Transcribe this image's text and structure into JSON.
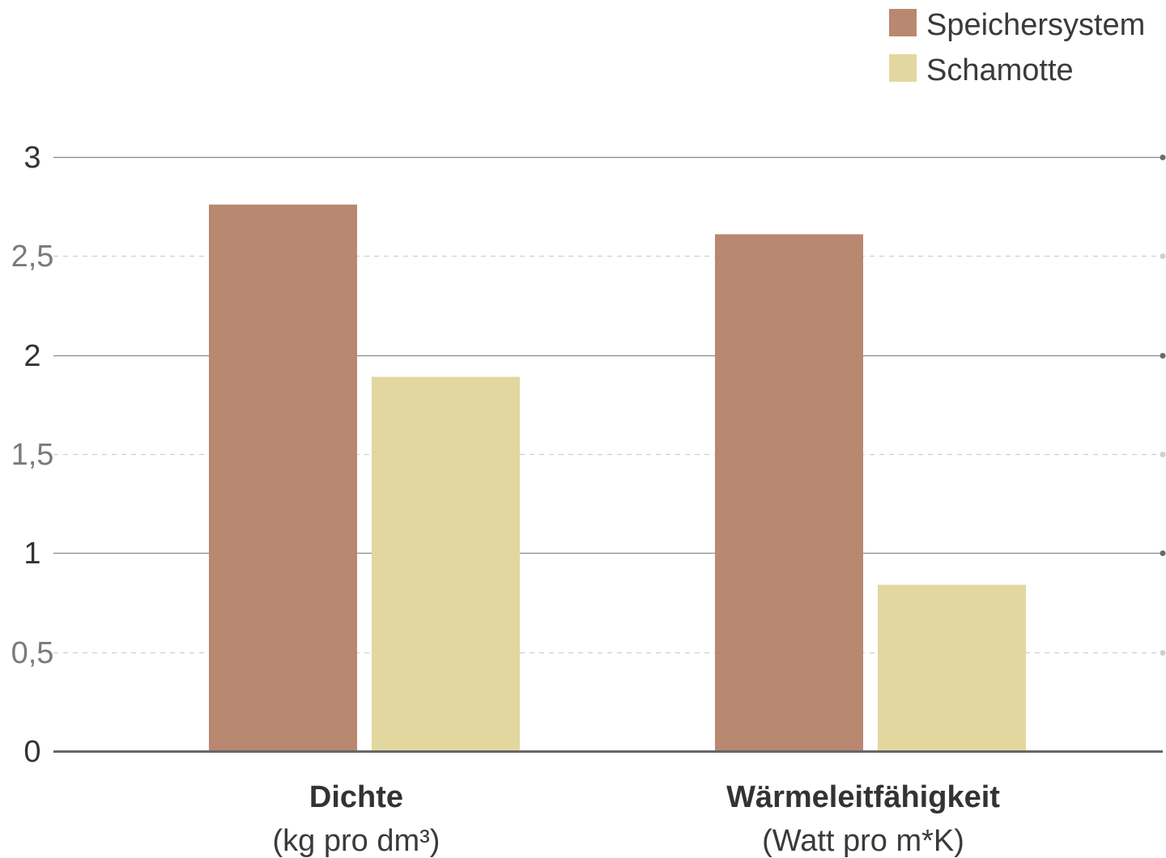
{
  "chart_data": {
    "type": "bar",
    "categories": [
      "Dichte",
      "Wärmeleitfähigkeit"
    ],
    "category_units": [
      "(kg pro dm³)",
      "(Watt pro m*K)"
    ],
    "series": [
      {
        "name": "Speichersystem",
        "color": "#b98870",
        "values": [
          2.76,
          2.61
        ]
      },
      {
        "name": "Schamotte",
        "color": "#e3d7a0",
        "values": [
          1.89,
          0.84
        ]
      }
    ],
    "yticks": [
      {
        "value": 0,
        "label": "0",
        "major": true
      },
      {
        "value": 0.5,
        "label": "0,5",
        "major": false
      },
      {
        "value": 1,
        "label": "1",
        "major": true
      },
      {
        "value": 1.5,
        "label": "1,5",
        "major": false
      },
      {
        "value": 2,
        "label": "2",
        "major": true
      },
      {
        "value": 2.5,
        "label": "2,5",
        "major": false
      },
      {
        "value": 3,
        "label": "3",
        "major": true
      }
    ],
    "ylim": [
      0,
      3
    ],
    "grid": true,
    "legend": "top-right"
  }
}
